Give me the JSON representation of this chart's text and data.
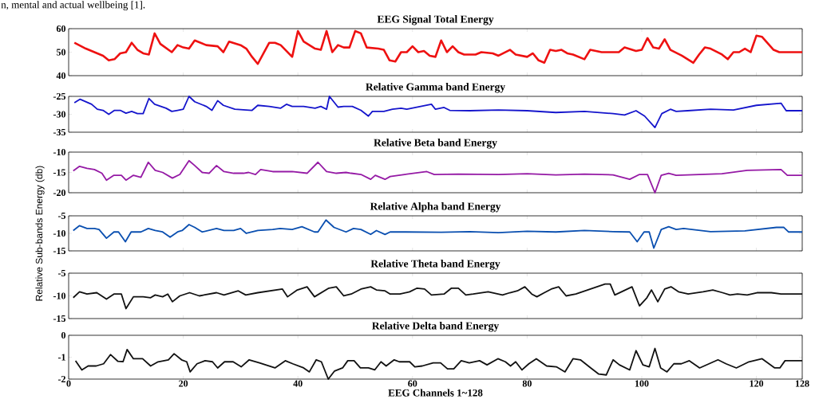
{
  "chart_data": [
    {
      "type": "line",
      "title": "EEG Signal Total Energy",
      "color": "#ee1111",
      "annotations": [
        "n, mental and actual wellbeing [1]."
      ],
      "xlim": [
        0,
        128
      ],
      "ylim": [
        40,
        60
      ],
      "xticks": [
        0,
        20,
        40,
        60,
        80,
        100,
        120,
        128
      ],
      "yticks": [
        40,
        50,
        60
      ],
      "tick_labels": "y",
      "x": [
        1,
        3,
        5,
        6,
        7,
        8,
        9,
        10,
        11,
        12,
        13,
        14,
        15,
        16,
        18,
        19,
        20,
        21,
        22,
        24,
        26,
        27,
        28,
        30,
        31,
        32,
        33,
        34,
        35,
        36,
        37,
        39,
        40,
        41,
        43,
        44,
        45,
        46,
        47,
        48,
        49,
        50,
        51,
        52,
        54,
        55,
        56,
        57,
        58,
        59,
        60,
        61,
        62,
        63,
        64,
        65,
        66,
        67,
        68,
        69,
        71,
        72,
        74,
        75,
        77,
        78,
        80,
        81,
        82,
        83,
        84,
        85,
        86,
        87,
        88,
        90,
        91,
        93,
        96,
        97,
        99,
        100,
        101,
        102,
        103,
        104,
        105,
        107,
        109,
        110,
        111,
        112,
        114,
        115,
        116,
        117,
        118,
        119,
        120,
        121,
        123,
        124,
        128
      ],
      "values": [
        54,
        51.5,
        49.5,
        48.5,
        46.5,
        47,
        49.5,
        50,
        54,
        51,
        49.5,
        49,
        58,
        53.5,
        50,
        53,
        52,
        51.5,
        55,
        53,
        52.5,
        50,
        54.5,
        53,
        51.5,
        48,
        45,
        49.5,
        54,
        54,
        53,
        48,
        59,
        54.5,
        51.5,
        51,
        59,
        50,
        53,
        52,
        52,
        59,
        58,
        52,
        51.5,
        51,
        46.5,
        46,
        50,
        50,
        52.5,
        50,
        50.5,
        48.5,
        48,
        55,
        50,
        52.5,
        50,
        49,
        49,
        50,
        49.5,
        48.5,
        51,
        49,
        48,
        49.5,
        46.5,
        45.5,
        51,
        50.5,
        51,
        49.5,
        49,
        47,
        51,
        50,
        50,
        52,
        50.5,
        51,
        56,
        52,
        51.5,
        55.5,
        51,
        48.5,
        45.5,
        49,
        52,
        51.5,
        49,
        47,
        50,
        50,
        51.5,
        50,
        57,
        56.5,
        51,
        50,
        50
      ]
    },
    {
      "type": "line",
      "title": "Relative Gamma band Energy",
      "color": "#1515cc",
      "xlim": [
        0,
        128
      ],
      "ylim": [
        -35,
        -25
      ],
      "xticks": [
        0,
        20,
        40,
        60,
        80,
        100,
        120,
        128
      ],
      "yticks": [
        -35,
        -30,
        -25
      ],
      "tick_labels": "y",
      "x": [
        1,
        2,
        4,
        5,
        6,
        7,
        8,
        9,
        10,
        11,
        12,
        13,
        14,
        15,
        17,
        18,
        19,
        20,
        21,
        22,
        24,
        25,
        26,
        27,
        29,
        32,
        33,
        35,
        37,
        38,
        39,
        41,
        43,
        44,
        45,
        45.5,
        47,
        48,
        49.5,
        51,
        52.3,
        53,
        55,
        56.5,
        58,
        59,
        63.3,
        64,
        65.5,
        66.5,
        70,
        75,
        80,
        85,
        90,
        95,
        97,
        99,
        100.5,
        102.3,
        103.5,
        105,
        106,
        108,
        112,
        116,
        120,
        124.3,
        125.2,
        128
      ],
      "values": [
        -26.8,
        -25.8,
        -27.2,
        -28.6,
        -28.9,
        -30,
        -28.9,
        -28.9,
        -29.7,
        -29.2,
        -29.8,
        -29.8,
        -25.6,
        -27.2,
        -28.3,
        -29.2,
        -28.9,
        -28.6,
        -25,
        -26.5,
        -27.8,
        -28.9,
        -26.2,
        -27.5,
        -28.6,
        -28.9,
        -27.5,
        -27.8,
        -28.3,
        -27.2,
        -27.8,
        -27.8,
        -28.3,
        -27.8,
        -28.6,
        -25,
        -28,
        -27.8,
        -27.8,
        -28.9,
        -30.5,
        -29.2,
        -29.2,
        -28.6,
        -28.3,
        -28.6,
        -27.2,
        -28.6,
        -28.1,
        -28.9,
        -29,
        -28.8,
        -29,
        -29.5,
        -29.2,
        -29.8,
        -30.2,
        -29,
        -30.5,
        -33.7,
        -29.8,
        -28.6,
        -29.2,
        -29,
        -28.6,
        -28.8,
        -27.5,
        -26.9,
        -29,
        -29
      ]
    },
    {
      "type": "line",
      "title": "Relative Beta band Energy",
      "color": "#951aa5",
      "xlim": [
        0,
        128
      ],
      "ylim": [
        -20,
        -10
      ],
      "xticks": [
        0,
        20,
        40,
        60,
        80,
        100,
        120,
        128
      ],
      "yticks": [
        -20,
        -15,
        -10
      ],
      "tick_labels": "y",
      "x": [
        0.8,
        1.9,
        3.2,
        4.5,
        5.8,
        6.6,
        7.9,
        9.2,
        10,
        11.3,
        12.6,
        13.9,
        15.1,
        16.4,
        18.1,
        19.4,
        21,
        22,
        23.3,
        24.5,
        25.8,
        27.1,
        28.8,
        30.5,
        31.4,
        32.6,
        33.5,
        35.6,
        39,
        41.6,
        43.5,
        45,
        46.7,
        48.4,
        49.3,
        51,
        52.7,
        53.5,
        55.2,
        56.1,
        58.6,
        62.5,
        63.8,
        68,
        75,
        80,
        85,
        90,
        95,
        97.9,
        99.6,
        101,
        102.3,
        103.4,
        104.7,
        106,
        110,
        114,
        118.4,
        124.3,
        125.4,
        128
      ],
      "values": [
        -14.6,
        -13.5,
        -14,
        -14.3,
        -15.2,
        -16.9,
        -15.7,
        -15.7,
        -16.9,
        -15.7,
        -16.2,
        -12.5,
        -14.5,
        -15,
        -16.4,
        -15.5,
        -12.1,
        -13.3,
        -15,
        -15.2,
        -13.3,
        -14.8,
        -15.2,
        -15.2,
        -15,
        -15.5,
        -14.3,
        -14.8,
        -14.8,
        -15.2,
        -12.5,
        -14.8,
        -15.2,
        -15,
        -15.2,
        -15.5,
        -16.7,
        -15.7,
        -16.7,
        -16,
        -15.5,
        -14.8,
        -15.5,
        -15.4,
        -15.5,
        -15.3,
        -15.6,
        -15.4,
        -15.6,
        -16.7,
        -15.5,
        -15.5,
        -20,
        -15.7,
        -15.2,
        -15.7,
        -15.5,
        -15.3,
        -14.5,
        -14.3,
        -15.7,
        -15.7
      ]
    },
    {
      "type": "line",
      "title": "Relative Alpha band Energy",
      "ylabel": "Relative Sub-bands Energy (db)",
      "color": "#0a4fb0",
      "xlim": [
        0,
        128
      ],
      "ylim": [
        -15,
        -5
      ],
      "xticks": [
        0,
        20,
        40,
        60,
        80,
        100,
        120,
        128
      ],
      "yticks": [
        -15,
        -10,
        -5
      ],
      "tick_labels": "y",
      "x": [
        0.8,
        1.9,
        3.2,
        4.5,
        5.3,
        6.6,
        7.9,
        8.7,
        9.9,
        10.9,
        12.6,
        13.9,
        15.1,
        16.4,
        17.7,
        19,
        19.8,
        21,
        22,
        23.3,
        25.8,
        27.1,
        28.8,
        30,
        31,
        33,
        35.6,
        36.9,
        39,
        40.7,
        42.9,
        43.5,
        44.9,
        46.3,
        48.4,
        49.7,
        51,
        52.7,
        53.7,
        55.2,
        56.1,
        58.6,
        65,
        70,
        75,
        80,
        85,
        90,
        95,
        97.9,
        99.2,
        100.4,
        101.3,
        102.1,
        103.4,
        104.7,
        106,
        107.3,
        112,
        118,
        123.5,
        124.8,
        125.6,
        128
      ],
      "values": [
        -9.2,
        -7.8,
        -8.6,
        -8.6,
        -8.9,
        -11.4,
        -9.6,
        -9.6,
        -12.4,
        -9.6,
        -9.6,
        -8.6,
        -9.2,
        -9.6,
        -11.1,
        -9.6,
        -9.2,
        -7.5,
        -8.3,
        -9.6,
        -8.6,
        -9.2,
        -9.2,
        -8.6,
        -10,
        -9.2,
        -8.9,
        -8.6,
        -8.9,
        -8.1,
        -9.6,
        -9.6,
        -6.2,
        -8.3,
        -9.6,
        -8.6,
        -8.9,
        -10.3,
        -9.2,
        -10.3,
        -9.6,
        -9.6,
        -9.7,
        -9.5,
        -9.8,
        -9.4,
        -9.6,
        -9.2,
        -9.5,
        -9.6,
        -12.4,
        -9.6,
        -9.6,
        -14.2,
        -8.9,
        -8.1,
        -8.9,
        -8.6,
        -9.5,
        -9.3,
        -8.3,
        -8.3,
        -9.6,
        -9.6
      ]
    },
    {
      "type": "line",
      "title": "Relative Theta band Energy",
      "color": "#111111",
      "xlim": [
        0,
        128
      ],
      "ylim": [
        -15,
        -5
      ],
      "xticks": [
        0,
        20,
        40,
        60,
        80,
        100,
        120,
        128
      ],
      "yticks": [
        -15,
        -10,
        -5
      ],
      "tick_labels": "y",
      "x": [
        0.8,
        1.9,
        3.2,
        4.9,
        6.6,
        7.9,
        9.2,
        10,
        11.3,
        13,
        14.3,
        15.1,
        16.4,
        17.3,
        18.1,
        19.4,
        21.1,
        22.8,
        25.8,
        27.1,
        29.6,
        30.9,
        33,
        37.3,
        38.2,
        39.9,
        41.6,
        42.9,
        45.4,
        46.7,
        48,
        49.3,
        51,
        52.7,
        53.7,
        55.2,
        56.1,
        57.8,
        59.5,
        60.8,
        62.1,
        63.3,
        65.5,
        66.8,
        68,
        69.3,
        70.6,
        73.2,
        75.7,
        77,
        78.3,
        79.6,
        80.8,
        81.7,
        83,
        84.2,
        85.5,
        86.8,
        88.5,
        93.6,
        94.5,
        95.3,
        98.3,
        99.6,
        100.9,
        101.7,
        102.8,
        104,
        105.1,
        106.4,
        108.1,
        110.7,
        112.4,
        114.1,
        115.4,
        116.7,
        118.4,
        120.1,
        122.6,
        124.3,
        128
      ],
      "values": [
        -10.4,
        -9.1,
        -9.6,
        -9.3,
        -10.7,
        -9.6,
        -9.6,
        -12.8,
        -10.2,
        -10.2,
        -10.4,
        -9.8,
        -10.2,
        -9.6,
        -11.3,
        -10,
        -9.3,
        -10,
        -9.3,
        -9.8,
        -8.9,
        -9.8,
        -9.3,
        -8.5,
        -10.2,
        -8.7,
        -8,
        -10.2,
        -8.3,
        -8,
        -10,
        -9.6,
        -8.5,
        -8,
        -8.7,
        -8.9,
        -9.6,
        -9.6,
        -9.1,
        -8.3,
        -8.5,
        -9.8,
        -9.6,
        -8.3,
        -8.3,
        -9.8,
        -9.6,
        -9.1,
        -9.8,
        -9.3,
        -8.9,
        -8,
        -9.6,
        -10.2,
        -9.3,
        -8.5,
        -8,
        -10,
        -9.6,
        -7.4,
        -7.4,
        -9.8,
        -8,
        -12.2,
        -10.4,
        -8.7,
        -11.3,
        -8.5,
        -8,
        -9.1,
        -9.6,
        -9.1,
        -8.7,
        -9.3,
        -9.8,
        -9.6,
        -9.8,
        -9.3,
        -9.3,
        -9.6,
        -9.6
      ]
    },
    {
      "type": "line",
      "title": "Relative Delta band Energy",
      "xlabel": "EEG Channels 1~128",
      "color": "#111111",
      "xlim": [
        0,
        128
      ],
      "ylim": [
        -2,
        0
      ],
      "xticks": [
        0,
        20,
        40,
        60,
        80,
        100,
        120,
        128
      ],
      "yticks": [
        -2,
        -1,
        0
      ],
      "x": [
        1.2,
        2.3,
        3.4,
        4.8,
        6.1,
        7.3,
        8.6,
        9.5,
        10.2,
        11.3,
        12.9,
        14.3,
        15.6,
        17.4,
        18.4,
        19.7,
        20.6,
        21.2,
        22.4,
        23.8,
        25.1,
        26,
        27.2,
        28.7,
        30.1,
        31.5,
        33.3,
        36,
        37.8,
        39.1,
        41,
        42,
        43.2,
        44.1,
        45.3,
        46.4,
        47.8,
        48.7,
        49.8,
        50.9,
        52.3,
        53.4,
        54.5,
        55.4,
        56.8,
        57.7,
        59.5,
        60.4,
        61.7,
        63.6,
        64.9,
        66.1,
        67.2,
        68.5,
        69.9,
        71.7,
        73,
        74.9,
        76.2,
        77.1,
        78,
        79.1,
        80.3,
        81.6,
        83.4,
        85.1,
        86.6,
        88,
        89.3,
        91.1,
        92.5,
        93.8,
        95,
        96.1,
        97.9,
        99,
        100.2,
        101.3,
        102.3,
        103.3,
        104.4,
        105.6,
        106.9,
        108.3,
        110.1,
        113.3,
        114.7,
        116.5,
        118.7,
        121,
        123.2,
        124.1,
        125,
        128
      ],
      "values": [
        -1.16,
        -1.58,
        -1.4,
        -1.4,
        -1.3,
        -0.88,
        -1.19,
        -1.2,
        -0.65,
        -1.07,
        -1.07,
        -1.4,
        -1.21,
        -1.12,
        -0.84,
        -1.12,
        -1.21,
        -1.67,
        -1.3,
        -1.16,
        -1.21,
        -1.49,
        -1.21,
        -1.21,
        -1.44,
        -1.12,
        -1.26,
        -1.49,
        -1.16,
        -1.3,
        -1.49,
        -1.67,
        -1.12,
        -1.21,
        -2,
        -1.63,
        -1.49,
        -1.16,
        -1.16,
        -1.49,
        -1.49,
        -1.58,
        -1.21,
        -1.4,
        -1.12,
        -1.21,
        -1.21,
        -1.44,
        -1.4,
        -1.26,
        -1.26,
        -1.53,
        -1.53,
        -1.16,
        -1.26,
        -1.16,
        -1.35,
        -1.07,
        -1.21,
        -1.4,
        -1.21,
        -1.58,
        -1.3,
        -1.07,
        -1.4,
        -1.44,
        -1.67,
        -1.07,
        -1.12,
        -1.49,
        -1.77,
        -1.81,
        -1.12,
        -1.35,
        -1.58,
        -0.7,
        -1.35,
        -1.44,
        -0.6,
        -1.49,
        -1.67,
        -1.3,
        -1.3,
        -1.16,
        -1.49,
        -1.12,
        -1.3,
        -1.49,
        -1.21,
        -1.07,
        -1.49,
        -1.49,
        -1.16,
        -1.16
      ]
    }
  ]
}
